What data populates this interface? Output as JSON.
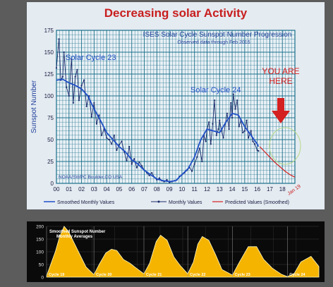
{
  "slide": {
    "title": "Decreasing solar Activity"
  },
  "chart_data": [
    {
      "type": "line",
      "title": "ISES Solar Cycle Sunspot Number Progression",
      "subtitle": "Observed data through Feb 2016",
      "ylabel": "Sunspot Number",
      "xlabel": "",
      "xlim": [
        2000.0,
        2019.0
      ],
      "ylim": [
        0,
        175
      ],
      "yticks": [
        0,
        25,
        50,
        75,
        100,
        125,
        150,
        175
      ],
      "xtick_labels": [
        "00",
        "01",
        "02",
        "03",
        "04",
        "05",
        "06",
        "07",
        "08",
        "09",
        "10",
        "11",
        "12",
        "13",
        "14",
        "15",
        "16",
        "17",
        "18",
        "Jan 19"
      ],
      "grid": true,
      "legend_position": "bottom",
      "credit": "NOAA/SWPC Boulder,CO USA",
      "colors": {
        "monthly": "#1b2a6b",
        "smoothed": "#1f4fc7",
        "predicted": "#d42020",
        "grid": "#1a6f8a"
      },
      "series": [
        {
          "name": "Smoothed Monthly Values",
          "x": [
            2000.0,
            2000.5,
            2001.0,
            2001.5,
            2002.0,
            2002.5,
            2003.0,
            2003.5,
            2004.0,
            2004.5,
            2005.0,
            2005.5,
            2006.0,
            2006.5,
            2007.0,
            2007.5,
            2008.0,
            2008.5,
            2009.0,
            2009.5,
            2010.0,
            2010.5,
            2011.0,
            2011.5,
            2012.0,
            2012.5,
            2013.0,
            2013.5,
            2014.0,
            2014.5,
            2015.0,
            2015.5,
            2016.0,
            2016.1
          ],
          "y": [
            118,
            119,
            115,
            112,
            108,
            100,
            85,
            72,
            58,
            50,
            42,
            36,
            27,
            22,
            15,
            10,
            5,
            3,
            2,
            3,
            10,
            17,
            30,
            50,
            62,
            60,
            58,
            70,
            80,
            78,
            65,
            55,
            45,
            42
          ]
        },
        {
          "name": "Monthly Values",
          "x": [
            2000.0,
            2000.2,
            2000.35,
            2000.5,
            2000.6,
            2000.8,
            2001.0,
            2001.2,
            2001.35,
            2001.5,
            2001.65,
            2001.8,
            2002.0,
            2002.2,
            2002.4,
            2002.6,
            2002.8,
            2003.0,
            2003.2,
            2003.4,
            2003.6,
            2003.8,
            2004.0,
            2004.2,
            2004.4,
            2004.6,
            2004.8,
            2005.0,
            2005.2,
            2005.4,
            2005.6,
            2005.8,
            2006.0,
            2006.2,
            2006.4,
            2006.6,
            2006.8,
            2007.0,
            2007.2,
            2007.4,
            2007.6,
            2007.8,
            2008.0,
            2008.2,
            2008.4,
            2008.6,
            2008.8,
            2009.0,
            2009.2,
            2009.4,
            2009.6,
            2009.8,
            2010.0,
            2010.2,
            2010.4,
            2010.6,
            2010.8,
            2011.0,
            2011.2,
            2011.4,
            2011.6,
            2011.75,
            2011.9,
            2012.0,
            2012.15,
            2012.3,
            2012.45,
            2012.6,
            2012.75,
            2012.9,
            2013.0,
            2013.15,
            2013.3,
            2013.45,
            2013.6,
            2013.75,
            2013.9,
            2014.0,
            2014.1,
            2014.25,
            2014.4,
            2014.55,
            2014.7,
            2014.85,
            2015.0,
            2015.15,
            2015.3,
            2015.5,
            2015.65,
            2015.8,
            2016.0,
            2016.1
          ],
          "y": [
            132,
            165,
            118,
            122,
            150,
            110,
            100,
            142,
            92,
            122,
            130,
            95,
            112,
            118,
            88,
            100,
            76,
            92,
            68,
            78,
            55,
            62,
            52,
            50,
            45,
            55,
            38,
            44,
            48,
            36,
            26,
            42,
            22,
            28,
            18,
            24,
            20,
            15,
            12,
            9,
            12,
            7,
            4,
            6,
            3,
            2,
            4,
            1,
            2,
            3,
            4,
            8,
            10,
            12,
            15,
            18,
            14,
            22,
            30,
            40,
            25,
            55,
            48,
            62,
            70,
            45,
            68,
            95,
            55,
            62,
            72,
            60,
            52,
            68,
            80,
            62,
            92,
            75,
            102,
            85,
            95,
            65,
            72,
            58,
            60,
            72,
            52,
            60,
            48,
            45,
            38,
            37
          ]
        },
        {
          "name": "Predicted Values (Smoothed)",
          "x": [
            2016.2,
            2016.6,
            2017.0,
            2017.4,
            2017.8,
            2018.2,
            2018.6,
            2019.0
          ],
          "y": [
            42,
            36,
            30,
            24,
            19,
            14,
            10,
            7
          ]
        }
      ],
      "annotations": [
        "Solar Cycle 23",
        "Solar Cycle 24",
        "YOU ARE HERE"
      ]
    },
    {
      "type": "area",
      "title": "Smoothed Sunspot Number",
      "subtitle": "Monthly Averages",
      "ylim": [
        0,
        200
      ],
      "yticks": [
        0,
        50,
        100,
        150,
        200
      ],
      "colors": {
        "fill": "#f5b400",
        "outline": "#fff9c2",
        "background": "#0a0a0a",
        "grid": "#3a3a3a"
      },
      "cycles": [
        "Cycle 19",
        "Cycle 20",
        "Cycle 21",
        "Cycle 22",
        "Cycle 23",
        "Cycle 24"
      ],
      "series": [
        {
          "name": "Smoothed Sunspot Number",
          "x": [
            1954,
            1956,
            1957,
            1958,
            1959,
            1961,
            1963,
            1964.8,
            1966,
            1967.5,
            1968.8,
            1970,
            1971.5,
            1973,
            1974.5,
            1976.2,
            1977.5,
            1979,
            1980,
            1981.5,
            1983,
            1984.5,
            1986.2,
            1987.5,
            1988.5,
            1989.5,
            1991,
            1992.5,
            1994,
            1996.4,
            1998,
            2000,
            2001.9,
            2003.5,
            2005.5,
            2007.5,
            2008.9,
            2010.5,
            2012,
            2014.3,
            2016.1
          ],
          "y": [
            5,
            100,
            160,
            200,
            180,
            110,
            40,
            10,
            50,
            95,
            110,
            105,
            70,
            55,
            35,
            13,
            55,
            140,
            165,
            145,
            80,
            45,
            13,
            60,
            130,
            160,
            145,
            90,
            30,
            8,
            60,
            120,
            120,
            70,
            35,
            12,
            2,
            15,
            60,
            82,
            42
          ]
        }
      ]
    }
  ]
}
